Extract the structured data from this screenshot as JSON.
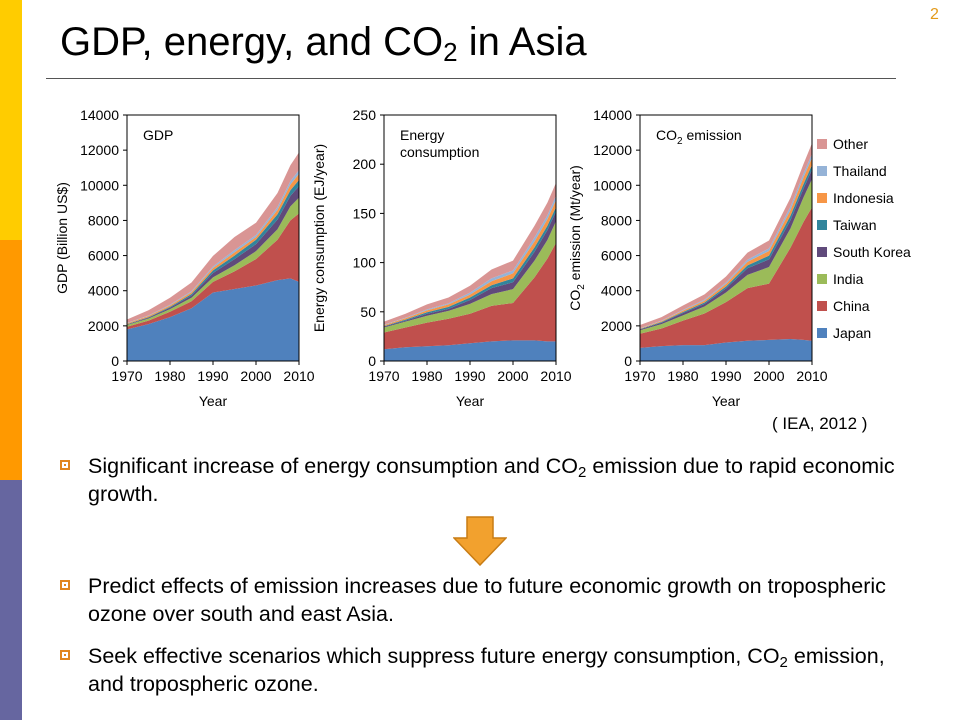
{
  "slide": {
    "number": "2",
    "title_pre": "GDP, energy, and CO",
    "title_sub": "2",
    "title_post": " in Asia",
    "source": "( IEA, 2012 )",
    "colors": {
      "side_bar_top": "#FFCC00",
      "side_bar_mid": "#FF9900",
      "side_bar_bottom": "#6666A0",
      "bullet": "#E1861E",
      "arrow": "#F2A12E"
    }
  },
  "bullets": [
    {
      "pre": "Significant increase of energy consumption and CO",
      "sub": "2",
      "post": " emission due to rapid economic growth."
    },
    {
      "pre": "Predict effects of emission increases due to future economic growth on tropospheric ozone over south and east Asia.",
      "sub": "",
      "post": ""
    },
    {
      "pre": "Seek effective scenarios which suppress future energy consumption, CO",
      "sub": "2",
      "post": " emission, and tropospheric ozone."
    }
  ],
  "legend": [
    {
      "name": "Other",
      "color": "#D99594"
    },
    {
      "name": "Thailand",
      "color": "#95B3D7"
    },
    {
      "name": "Indonesia",
      "color": "#F79646"
    },
    {
      "name": "Taiwan",
      "color": "#31859C"
    },
    {
      "name": "South Korea",
      "color": "#604A7B"
    },
    {
      "name": "India",
      "color": "#9BBB59"
    },
    {
      "name": "China",
      "color": "#C0504D"
    },
    {
      "name": "Japan",
      "color": "#4F81BD"
    }
  ],
  "chart_data": [
    {
      "type": "area",
      "stacked": true,
      "title": "GDP",
      "xlabel": "Year",
      "ylabel": "GDP (Billion US$)",
      "xlim": [
        1970,
        2010
      ],
      "ylim": [
        0,
        14000
      ],
      "yticks": [
        "0",
        "2000",
        "4000",
        "6000",
        "8000",
        "10000",
        "12000",
        "14000"
      ],
      "xticks": [
        "1970",
        "1980",
        "1990",
        "2000",
        "2010"
      ],
      "x": [
        1970,
        1975,
        1980,
        1985,
        1990,
        1995,
        2000,
        2005,
        2008,
        2010
      ],
      "series": [
        {
          "name": "Japan",
          "values": [
            1800,
            2100,
            2500,
            3000,
            3900,
            4100,
            4300,
            4600,
            4700,
            4500
          ]
        },
        {
          "name": "China",
          "values": [
            150,
            200,
            300,
            400,
            600,
            1000,
            1500,
            2300,
            3300,
            3900
          ]
        },
        {
          "name": "India",
          "values": [
            100,
            120,
            150,
            200,
            260,
            350,
            450,
            600,
            800,
            900
          ]
        },
        {
          "name": "South Korea",
          "values": [
            30,
            50,
            80,
            130,
            250,
            350,
            400,
            550,
            600,
            650
          ]
        },
        {
          "name": "Taiwan",
          "values": [
            20,
            30,
            50,
            80,
            150,
            200,
            250,
            300,
            320,
            350
          ]
        },
        {
          "name": "Indonesia",
          "values": [
            40,
            60,
            80,
            100,
            130,
            180,
            150,
            250,
            320,
            350
          ]
        },
        {
          "name": "Thailand",
          "values": [
            20,
            30,
            40,
            60,
            90,
            130,
            120,
            160,
            200,
            220
          ]
        },
        {
          "name": "Other",
          "values": [
            200,
            300,
            400,
            500,
            600,
            750,
            700,
            800,
            900,
            1000
          ]
        }
      ]
    },
    {
      "type": "area",
      "stacked": true,
      "title": "Energy\nconsumption",
      "xlabel": "Year",
      "ylabel": "Energy consumption (EJ/year)",
      "xlim": [
        1970,
        2010
      ],
      "ylim": [
        0,
        250
      ],
      "yticks": [
        "0",
        "50",
        "100",
        "150",
        "200",
        "250"
      ],
      "xticks": [
        "1970",
        "1980",
        "1990",
        "2000",
        "2010"
      ],
      "x": [
        1970,
        1975,
        1980,
        1985,
        1990,
        1995,
        2000,
        2005,
        2008,
        2010
      ],
      "series": [
        {
          "name": "Japan",
          "values": [
            12,
            14,
            15,
            16,
            18,
            20,
            21,
            21,
            20,
            20
          ]
        },
        {
          "name": "China",
          "values": [
            17,
            20,
            24,
            27,
            30,
            36,
            38,
            64,
            84,
            100
          ]
        },
        {
          "name": "India",
          "values": [
            5,
            6,
            7,
            8,
            10,
            12,
            14,
            17,
            19,
            22
          ]
        },
        {
          "name": "South Korea",
          "values": [
            1,
            1,
            2,
            2,
            4,
            6,
            7,
            9,
            10,
            10
          ]
        },
        {
          "name": "Taiwan",
          "values": [
            0.5,
            1,
            1.5,
            2,
            2.5,
            3,
            4,
            4.5,
            4.5,
            4.5
          ]
        },
        {
          "name": "Indonesia",
          "values": [
            1,
            1.5,
            2,
            2.5,
            3,
            4,
            5,
            6,
            6.5,
            7
          ]
        },
        {
          "name": "Thailand",
          "values": [
            0.5,
            0.5,
            1,
            1,
            2,
            3,
            3,
            4,
            4,
            4.5
          ]
        },
        {
          "name": "Other",
          "values": [
            3,
            4,
            5,
            6,
            7,
            9,
            10,
            12,
            13,
            13
          ]
        }
      ]
    },
    {
      "type": "area",
      "stacked": true,
      "title_pre": "CO",
      "title_sub": "2",
      "title_post": " emission",
      "xlabel": "Year",
      "ylabel_pre": "CO",
      "ylabel_sub": "2",
      "ylabel_post": " emission (Mt/year)",
      "xlim": [
        1970,
        2010
      ],
      "ylim": [
        0,
        14000
      ],
      "yticks": [
        "0",
        "2000",
        "4000",
        "6000",
        "8000",
        "10000",
        "12000",
        "14000"
      ],
      "xticks": [
        "1970",
        "1980",
        "1990",
        "2000",
        "2010"
      ],
      "x": [
        1970,
        1975,
        1980,
        1985,
        1990,
        1995,
        2000,
        2005,
        2008,
        2010
      ],
      "series": [
        {
          "name": "Japan",
          "values": [
            750,
            850,
            900,
            900,
            1050,
            1150,
            1200,
            1250,
            1200,
            1150
          ]
        },
        {
          "name": "China",
          "values": [
            800,
            1000,
            1400,
            1800,
            2300,
            3000,
            3200,
            5200,
            6700,
            7600
          ]
        },
        {
          "name": "India",
          "values": [
            200,
            250,
            300,
            400,
            550,
            750,
            950,
            1100,
            1400,
            1600
          ]
        },
        {
          "name": "South Korea",
          "values": [
            50,
            80,
            130,
            150,
            230,
            380,
            430,
            470,
            500,
            550
          ]
        },
        {
          "name": "Taiwan",
          "values": [
            20,
            40,
            60,
            80,
            110,
            160,
            220,
            250,
            260,
            260
          ]
        },
        {
          "name": "Indonesia",
          "values": [
            30,
            50,
            80,
            100,
            140,
            200,
            260,
            320,
            370,
            400
          ]
        },
        {
          "name": "Thailand",
          "values": [
            20,
            30,
            40,
            60,
            80,
            130,
            150,
            200,
            220,
            230
          ]
        },
        {
          "name": "Other",
          "values": [
            180,
            200,
            250,
            300,
            350,
            400,
            450,
            500,
            550,
            600
          ]
        }
      ]
    }
  ]
}
